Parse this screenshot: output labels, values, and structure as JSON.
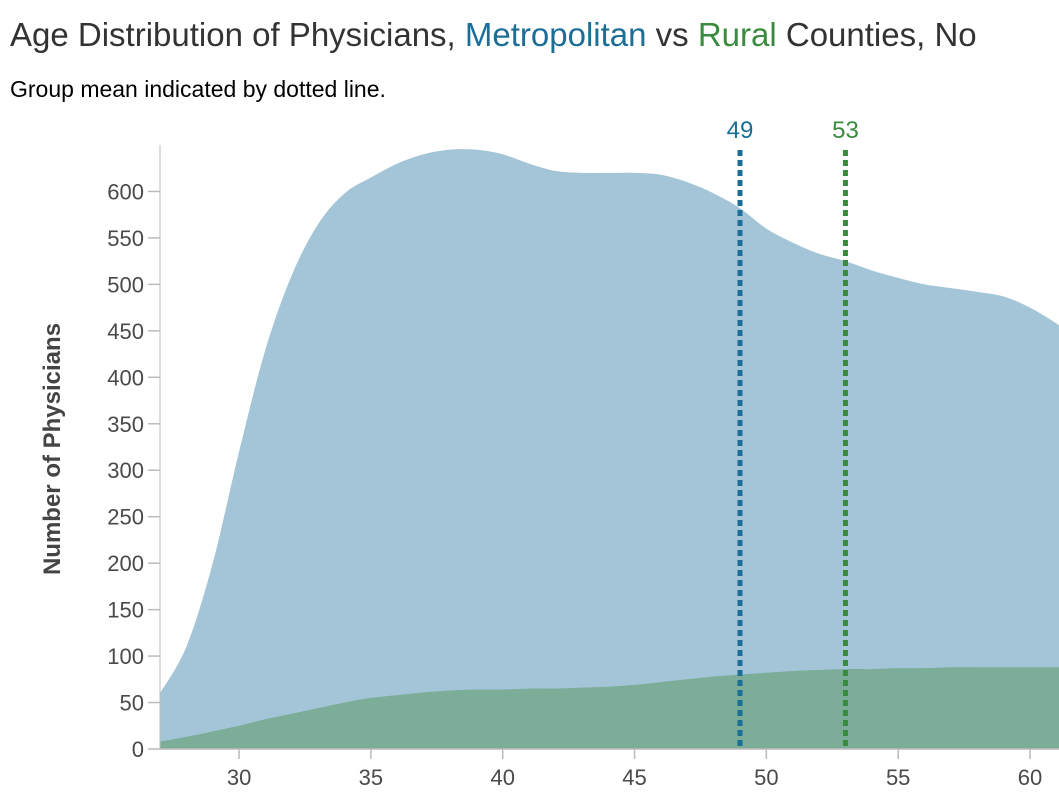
{
  "chart_data": {
    "type": "area",
    "title": {
      "prefix": "Age Distribution of Physicians, ",
      "metro_word": "Metropolitan",
      "vs": " vs ",
      "rural_word": "Rural",
      "suffix": " Counties, No"
    },
    "subtitle": "Group mean indicated by dotted line.",
    "ylabel": "Number of Physicians",
    "xlim": [
      27,
      61.1
    ],
    "ylim": [
      0,
      650
    ],
    "x_ticks": [
      30,
      35,
      40,
      45,
      50,
      55,
      60
    ],
    "y_ticks": [
      0,
      50,
      100,
      150,
      200,
      250,
      300,
      350,
      400,
      450,
      500,
      550,
      600
    ],
    "colors": {
      "metro_fill": "#a3c5d7",
      "rural_fill": "#7bad98",
      "metro_text": "#1c6e96",
      "rural_text": "#3a8a3f",
      "axis": "#bbbbbb"
    },
    "series": [
      {
        "name": "Metropolitan",
        "x": [
          27,
          28,
          29,
          30,
          31,
          32,
          33,
          34,
          35,
          36,
          37,
          38,
          39,
          40,
          41,
          42,
          43,
          44,
          45,
          46,
          47,
          48,
          49,
          50,
          51,
          52,
          53,
          54,
          55,
          56,
          57,
          58,
          59,
          60,
          61,
          61.1
        ],
        "values": [
          60,
          110,
          200,
          320,
          430,
          510,
          565,
          598,
          615,
          630,
          640,
          645,
          645,
          640,
          630,
          622,
          620,
          620,
          620,
          618,
          610,
          598,
          582,
          560,
          545,
          533,
          525,
          515,
          507,
          500,
          496,
          492,
          487,
          475,
          458,
          455
        ]
      },
      {
        "name": "Rural",
        "x": [
          27,
          28,
          29,
          30,
          31,
          32,
          33,
          34,
          35,
          36,
          37,
          38,
          39,
          40,
          41,
          42,
          43,
          44,
          45,
          46,
          47,
          48,
          49,
          50,
          51,
          52,
          53,
          54,
          55,
          56,
          57,
          58,
          59,
          60,
          61,
          61.1
        ],
        "values": [
          8,
          13,
          19,
          25,
          32,
          38,
          44,
          50,
          55,
          58,
          61,
          63,
          64,
          64,
          65,
          65,
          66,
          67,
          69,
          72,
          75,
          78,
          80,
          82,
          84,
          85,
          86,
          86,
          87,
          87,
          88,
          88,
          88,
          88,
          88,
          88
        ]
      }
    ],
    "means": [
      {
        "group": "Metropolitan",
        "value": 49,
        "label": "49"
      },
      {
        "group": "Rural",
        "value": 53,
        "label": "53"
      }
    ]
  }
}
